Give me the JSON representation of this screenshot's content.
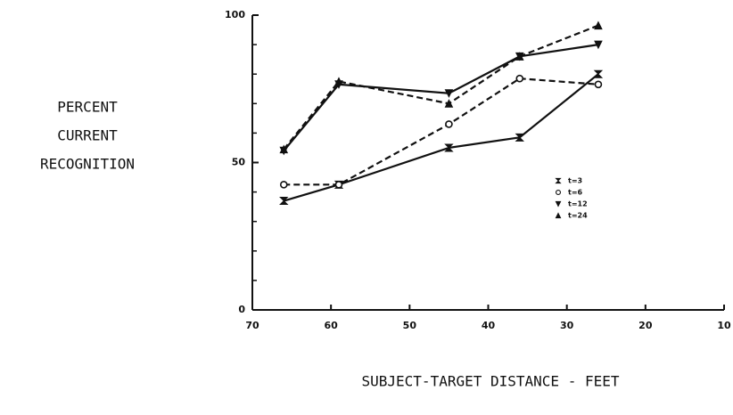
{
  "chart_data": {
    "type": "line",
    "y_label": [
      "PERCENT",
      "CURRENT",
      "RECOGNITION"
    ],
    "x_label": "SUBJECT-TARGET DISTANCE - FEET",
    "xlim": [
      70,
      10
    ],
    "xticks": [
      70,
      60,
      50,
      40,
      30,
      20,
      10
    ],
    "ylim": [
      0,
      100
    ],
    "yticks": [
      0,
      50,
      100
    ],
    "yminor_ticks": [
      10,
      20,
      30,
      40,
      60,
      70,
      80,
      90
    ],
    "x": [
      66,
      59,
      45,
      36,
      26
    ],
    "series": [
      {
        "name": "t=3",
        "color": "#111",
        "dashed": false,
        "marker": "hourglass",
        "values": [
          37,
          42.5,
          55,
          58.5,
          80
        ]
      },
      {
        "name": "t=6",
        "color": "#111",
        "dashed": true,
        "marker": "circle",
        "values": [
          42.5,
          42.5,
          63,
          78.5,
          76.5
        ]
      },
      {
        "name": "t=12",
        "color": "#111",
        "dashed": false,
        "marker": "triangle-down",
        "values": [
          54,
          76.5,
          73.5,
          86,
          90
        ]
      },
      {
        "name": "t=24",
        "color": "#111",
        "dashed": true,
        "marker": "triangle",
        "values": [
          54.5,
          77.5,
          70,
          86,
          96.5
        ]
      }
    ]
  }
}
